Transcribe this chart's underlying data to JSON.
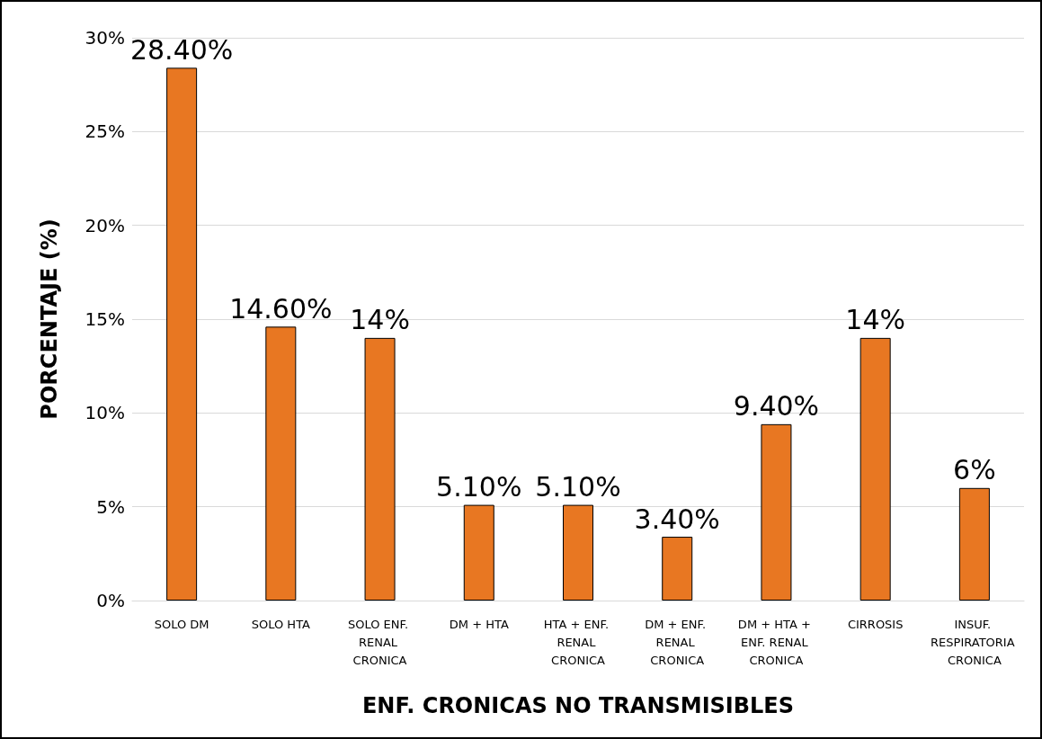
{
  "chart_data": {
    "type": "bar",
    "xlabel": "ENF. CRONICAS NO TRANSMISIBLES",
    "ylabel": "PORCENTAJE (%)",
    "categories": [
      "SOLO DM",
      "SOLO HTA",
      "SOLO ENF. RENAL CRONICA",
      "DM + HTA",
      "HTA + ENF. RENAL CRONICA",
      "DM + ENF. RENAL CRONICA",
      "DM + HTA + ENF. RENAL CRONICA",
      "CIRROSIS",
      "INSUF. RESPIRATORIA CRONICA"
    ],
    "values": [
      28.4,
      14.6,
      14,
      5.1,
      5.1,
      3.4,
      9.4,
      14,
      6
    ],
    "value_labels": [
      "28.40%",
      "14.60%",
      "14%",
      "5.10%",
      "5.10%",
      "3.40%",
      "9.40%",
      "14%",
      "6%"
    ],
    "color": "#e87722",
    "ylim": [
      0,
      30
    ],
    "yticks": [
      {
        "value": 0,
        "label": "0%"
      },
      {
        "value": 5,
        "label": "5%"
      },
      {
        "value": 10,
        "label": "10%"
      },
      {
        "value": 15,
        "label": "15%"
      },
      {
        "value": 20,
        "label": "20%"
      },
      {
        "value": 25,
        "label": "25%"
      },
      {
        "value": 30,
        "label": "30%"
      }
    ],
    "grid": "y"
  }
}
